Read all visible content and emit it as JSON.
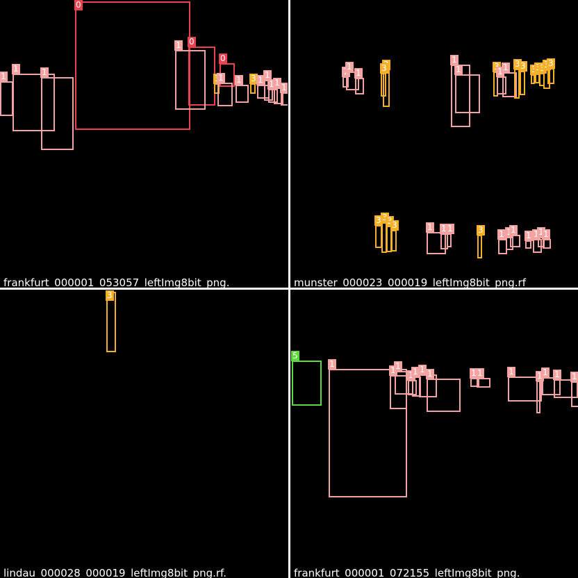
{
  "colors": {
    "class_0": "#e8434f",
    "class_1": "#f4a3a3",
    "class_3": "#f5b027",
    "class_5": "#5cdb3d"
  },
  "panels": [
    {
      "caption": "frankfurt_000001_053057_leftImg8bit_png.",
      "boxes": [
        {
          "label": "0",
          "cls": "class_0",
          "r": [
            108,
            2,
            274,
            187
          ]
        },
        {
          "label": "0",
          "cls": "class_0",
          "r": [
            271,
            67,
            310,
            152
          ]
        },
        {
          "label": "0",
          "cls": "class_0",
          "r": [
            316,
            91,
            338,
            125
          ]
        },
        {
          "label": "1",
          "cls": "class_1",
          "r": [
            252,
            72,
            296,
            158
          ]
        },
        {
          "label": "1",
          "cls": "class_1",
          "r": [
            18,
            106,
            79,
            189
          ]
        },
        {
          "label": "1",
          "cls": "class_1",
          "r": [
            59,
            111,
            106,
            216
          ]
        },
        {
          "label": "1",
          "cls": "class_1",
          "r": [
            0,
            117,
            19,
            167
          ]
        },
        {
          "label": "3",
          "cls": "class_3",
          "r": [
            308,
            120,
            316,
            135
          ]
        },
        {
          "label": "1",
          "cls": "class_1",
          "r": [
            313,
            119,
            335,
            153
          ]
        },
        {
          "label": "1",
          "cls": "class_1",
          "r": [
            339,
            122,
            358,
            148
          ]
        },
        {
          "label": "3",
          "cls": "class_3",
          "r": [
            360,
            120,
            368,
            135
          ]
        },
        {
          "label": "1",
          "cls": "class_1",
          "r": [
            370,
            122,
            388,
            142
          ]
        },
        {
          "label": "1",
          "cls": "class_1",
          "r": [
            380,
            115,
            393,
            145
          ]
        },
        {
          "label": "1",
          "cls": "class_1",
          "r": [
            386,
            128,
            400,
            148
          ]
        },
        {
          "label": "1",
          "cls": "class_1",
          "r": [
            394,
            126,
            408,
            150
          ]
        },
        {
          "label": "1",
          "cls": "class_1",
          "r": [
            404,
            133,
            416,
            152
          ]
        }
      ]
    },
    {
      "caption": "munster_000023_000019_leftImg8bit_png.rf",
      "boxes": [
        {
          "label": "1",
          "cls": "class_1",
          "r": [
            75,
            110,
            84,
            126
          ]
        },
        {
          "label": "1",
          "cls": "class_1",
          "r": [
            80,
            103,
            99,
            130
          ]
        },
        {
          "label": "1",
          "cls": "class_1",
          "r": [
            93,
            112,
            106,
            136
          ]
        },
        {
          "label": "3",
          "cls": "class_3",
          "r": [
            133,
            100,
            143,
            154
          ]
        },
        {
          "label": "3",
          "cls": "class_3",
          "r": [
            130,
            105,
            138,
            139
          ]
        },
        {
          "label": "1",
          "cls": "class_1",
          "r": [
            231,
            93,
            259,
            183
          ]
        },
        {
          "label": "1",
          "cls": "class_1",
          "r": [
            237,
            107,
            273,
            163
          ]
        },
        {
          "label": "3",
          "cls": "class_3",
          "r": [
            292,
            103,
            299,
            139
          ]
        },
        {
          "label": "1",
          "cls": "class_1",
          "r": [
            297,
            110,
            311,
            136
          ]
        },
        {
          "label": "1",
          "cls": "class_1",
          "r": [
            305,
            104,
            326,
            140
          ]
        },
        {
          "label": "3",
          "cls": "class_3",
          "r": [
            322,
            99,
            330,
            142
          ]
        },
        {
          "label": "3",
          "cls": "class_3",
          "r": [
            330,
            102,
            338,
            137
          ]
        },
        {
          "label": "3",
          "cls": "class_3",
          "r": [
            346,
            107,
            352,
            121
          ]
        },
        {
          "label": "3",
          "cls": "class_3",
          "r": [
            352,
            104,
            359,
            120
          ]
        },
        {
          "label": "3",
          "cls": "class_3",
          "r": [
            358,
            105,
            366,
            124
          ]
        },
        {
          "label": "3",
          "cls": "class_3",
          "r": [
            364,
            100,
            374,
            128
          ]
        },
        {
          "label": "3",
          "cls": "class_3",
          "r": [
            370,
            98,
            380,
            121
          ]
        },
        {
          "label": "3",
          "cls": "class_3",
          "r": [
            122,
            324,
            132,
            357
          ]
        },
        {
          "label": "3",
          "cls": "class_3",
          "r": [
            131,
            320,
            139,
            364
          ]
        },
        {
          "label": "3",
          "cls": "class_3",
          "r": [
            138,
            325,
            146,
            363
          ]
        },
        {
          "label": "3",
          "cls": "class_3",
          "r": [
            145,
            331,
            153,
            362
          ]
        },
        {
          "label": "1",
          "cls": "class_1",
          "r": [
            196,
            334,
            224,
            366
          ]
        },
        {
          "label": "1",
          "cls": "class_1",
          "r": [
            216,
            336,
            227,
            359
          ]
        },
        {
          "label": "1",
          "cls": "class_1",
          "r": [
            225,
            336,
            232,
            356
          ]
        },
        {
          "label": "3",
          "cls": "class_3",
          "r": [
            269,
            338,
            276,
            372
          ]
        },
        {
          "label": "1",
          "cls": "class_1",
          "r": [
            299,
            344,
            312,
            366
          ]
        },
        {
          "label": "1",
          "cls": "class_1",
          "r": [
            310,
            341,
            321,
            360
          ]
        },
        {
          "label": "1",
          "cls": "class_1",
          "r": [
            316,
            338,
            331,
            356
          ]
        },
        {
          "label": "1",
          "cls": "class_1",
          "r": [
            338,
            346,
            347,
            358
          ]
        },
        {
          "label": "1",
          "cls": "class_1",
          "r": [
            349,
            344,
            362,
            364
          ]
        },
        {
          "label": "1",
          "cls": "class_1",
          "r": [
            356,
            341,
            366,
            356
          ]
        },
        {
          "label": "1",
          "cls": "class_1",
          "r": [
            363,
            344,
            375,
            358
          ]
        }
      ]
    },
    {
      "caption": "lindau_000028_000019_leftImg8bit_png.rf.",
      "boxes": [
        {
          "label": "3",
          "cls": "class_3",
          "r": [
            153,
            2,
            167,
            89
          ]
        }
      ]
    },
    {
      "caption": "frankfurt_000001_072155_leftImg8bit_png.",
      "boxes": [
        {
          "label": "5",
          "cls": "class_5",
          "r": [
            2,
            101,
            45,
            166
          ]
        },
        {
          "label": "1",
          "cls": "class_1",
          "r": [
            55,
            113,
            168,
            298
          ]
        },
        {
          "label": "1",
          "cls": "class_1",
          "r": [
            143,
            122,
            168,
            171
          ]
        },
        {
          "label": "1",
          "cls": "class_1",
          "r": [
            150,
            116,
            177,
            150
          ]
        },
        {
          "label": "1",
          "cls": "class_1",
          "r": [
            169,
            129,
            182,
            151
          ]
        },
        {
          "label": "1",
          "cls": "class_1",
          "r": [
            175,
            124,
            188,
            153
          ]
        },
        {
          "label": "1",
          "cls": "class_1",
          "r": [
            185,
            121,
            211,
            154
          ]
        },
        {
          "label": "1",
          "cls": "class_1",
          "r": [
            196,
            127,
            245,
            175
          ]
        },
        {
          "label": "1",
          "cls": "class_1",
          "r": [
            259,
            126,
            272,
            139
          ]
        },
        {
          "label": "1",
          "cls": "class_1",
          "r": [
            268,
            126,
            288,
            140
          ]
        },
        {
          "label": "1",
          "cls": "class_1",
          "r": [
            313,
            124,
            362,
            160
          ]
        },
        {
          "label": "1",
          "cls": "class_1",
          "r": [
            354,
            130,
            360,
            177
          ]
        },
        {
          "label": "1",
          "cls": "class_1",
          "r": [
            362,
            125,
            389,
            151
          ]
        },
        {
          "label": "1",
          "cls": "class_1",
          "r": [
            379,
            128,
            414,
            155
          ]
        },
        {
          "label": "1",
          "cls": "class_1",
          "r": [
            404,
            131,
            416,
            168
          ]
        }
      ]
    }
  ]
}
